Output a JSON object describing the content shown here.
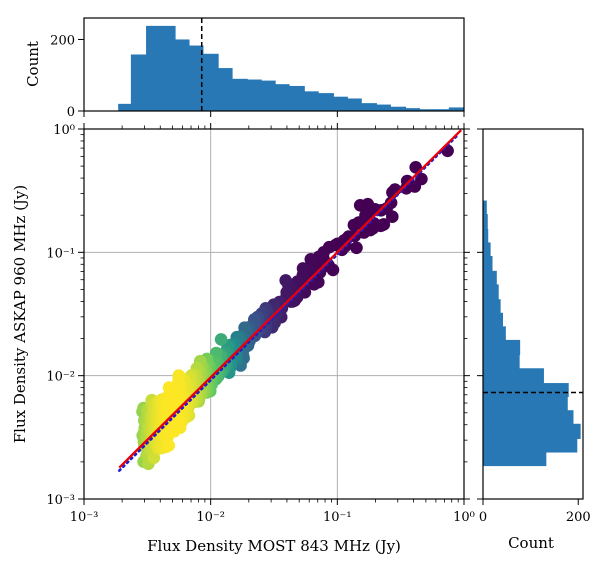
{
  "chart_data": {
    "type": "scatter",
    "title": "",
    "xlabel": "Flux Density MOST 843 MHz (Jy)",
    "ylabel": "Flux Density ASKAP 960 MHz (Jy)",
    "xscale": "log",
    "yscale": "log",
    "xlim": [
      0.001,
      1
    ],
    "ylim": [
      0.001,
      1
    ],
    "grid": true,
    "x_tick_labels": [
      "10⁻³",
      "10⁻²",
      "10⁻¹",
      "10⁰"
    ],
    "y_tick_labels": [
      "10⁻³",
      "10⁻²",
      "10⁻¹",
      "10⁰"
    ],
    "colormap": "viridis (density: dark purple = sparse, yellow = dense)",
    "colors": {
      "fit_line": "#e8000b",
      "one_to_one_line": "#1f1fcc",
      "histogram": "#2878b5"
    },
    "fit_line": {
      "style": "solid",
      "x": [
        0.0019,
        0.95
      ],
      "y": [
        0.0018,
        0.98
      ]
    },
    "one_to_one_line": {
      "style": "dotted",
      "x": [
        0.0019,
        0.88
      ],
      "y": [
        0.0017,
        0.88
      ]
    },
    "scatter_summary": {
      "x_range": [
        0.0019,
        0.95
      ],
      "y_range": [
        0.0011,
        0.95
      ],
      "description": "dense yellow cluster near 0.003–0.01 Jy, sparse purple points toward 1 Jy"
    },
    "top_histogram": {
      "ylabel": "Count",
      "y_ticks": [
        "0",
        "200"
      ],
      "ylim": [
        0,
        260
      ],
      "bin_edges_log10": [
        -2.73,
        -2.63,
        -2.51,
        -2.39,
        -2.28,
        -2.17,
        -2.06,
        -1.94,
        -1.83,
        -1.71,
        -1.6,
        -1.49,
        -1.38,
        -1.26,
        -1.15,
        -1.03,
        -0.92,
        -0.81,
        -0.69,
        -0.58,
        -0.46,
        -0.35,
        -0.24,
        -0.12,
        0.0
      ],
      "counts": [
        20,
        158,
        238,
        238,
        200,
        183,
        160,
        120,
        90,
        88,
        85,
        75,
        70,
        55,
        50,
        40,
        35,
        22,
        18,
        12,
        8,
        5,
        5,
        10
      ],
      "median_x": 0.0085
    },
    "right_histogram": {
      "xlabel": "Count",
      "x_ticks": [
        "0",
        "200"
      ],
      "xlim": [
        0,
        210
      ],
      "bin_edges_log10": [
        -2.73,
        -2.62,
        -2.51,
        -2.39,
        -2.28,
        -2.17,
        -2.06,
        -1.94,
        -1.83,
        -1.71,
        -1.6,
        -1.49,
        -1.38,
        -1.26,
        -1.15,
        -1.03,
        -0.92,
        -0.81,
        -0.69,
        -0.58
      ],
      "counts": [
        133,
        198,
        205,
        190,
        178,
        180,
        128,
        77,
        78,
        48,
        42,
        37,
        33,
        29,
        20,
        16,
        11,
        10,
        8
      ],
      "median_y": 0.0073
    }
  }
}
